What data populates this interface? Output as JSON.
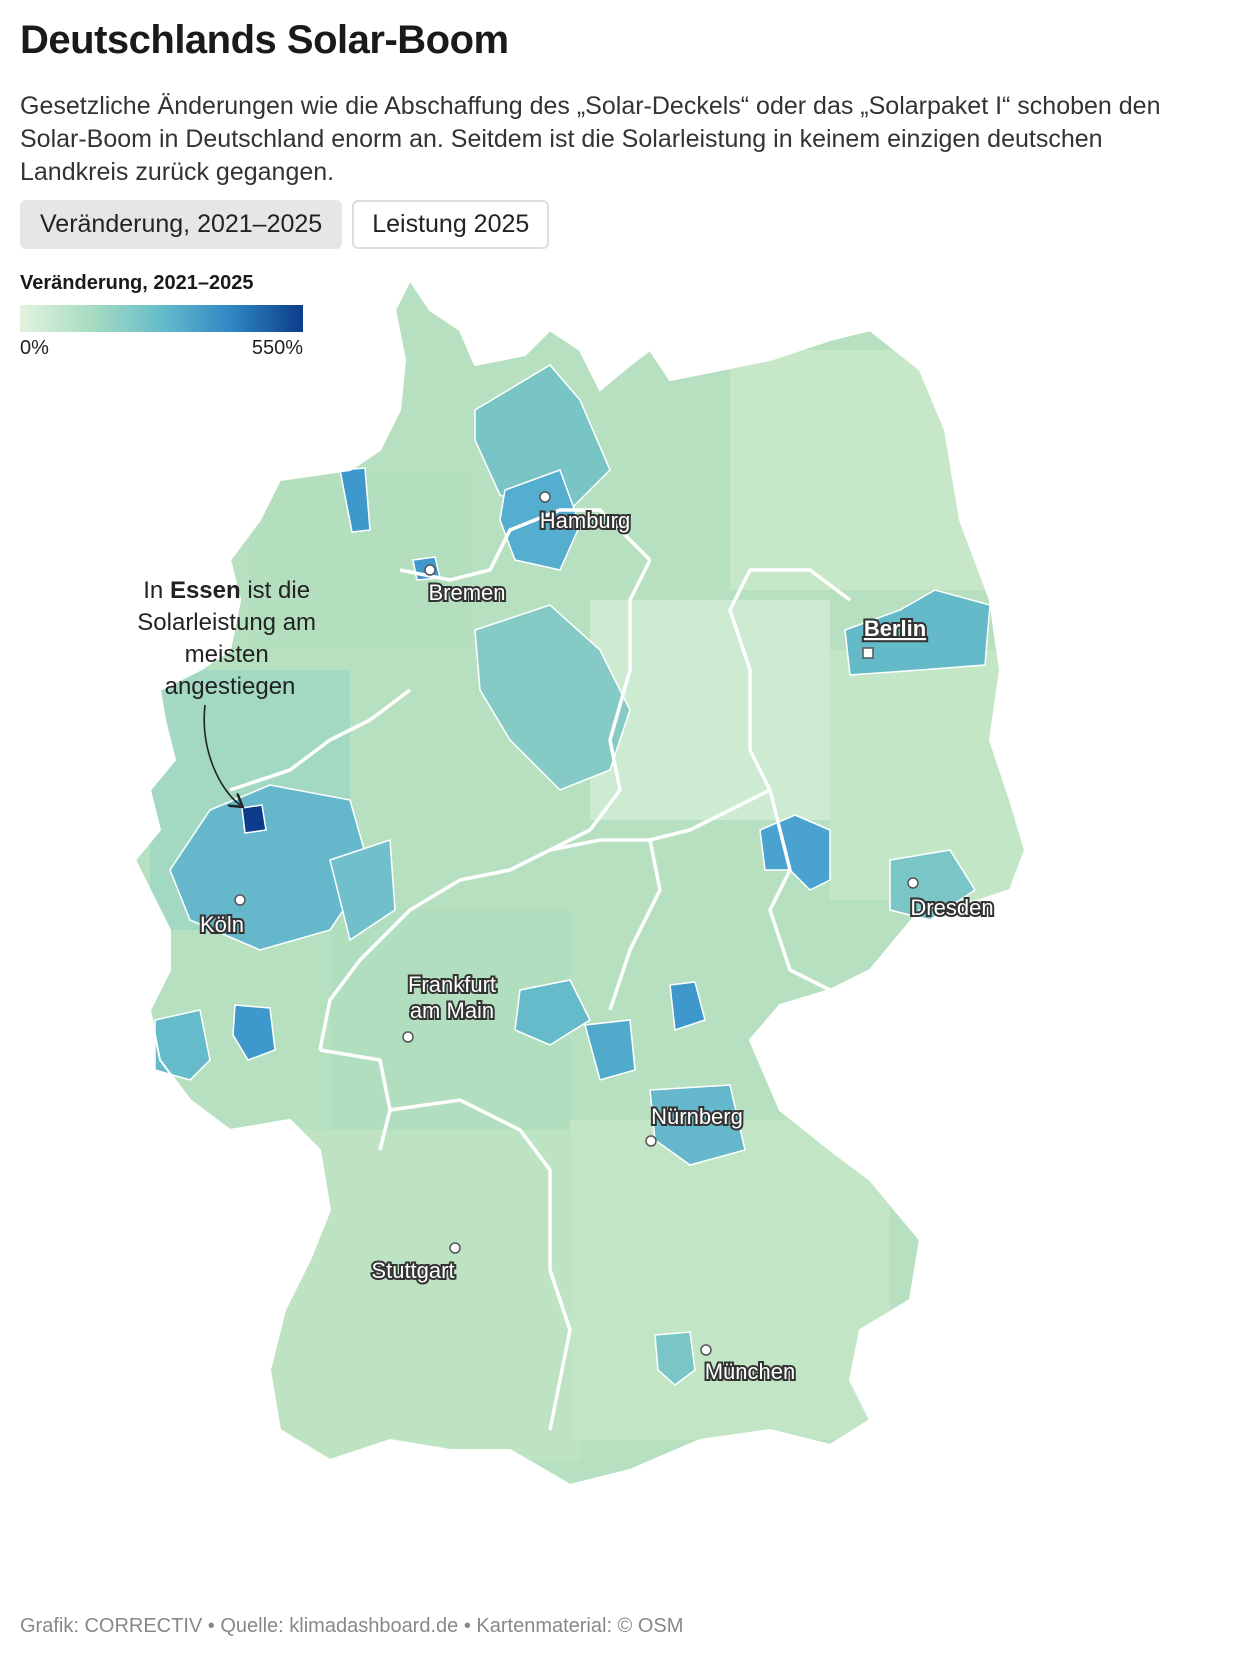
{
  "title": "Deutschlands Solar-Boom",
  "subtitle": "Gesetzliche Änderungen wie die Abschaffung des „Solar-Deckels“ oder das „Solarpaket I“ schoben den Solar-Boom in Deutschland enorm an. Seitdem ist die Solarleistung in keinem einzigen deutschen Landkreis zurück gegangen.",
  "tabs": [
    {
      "label": "Veränderung, 2021–2025",
      "active": true
    },
    {
      "label": "Leistung 2025",
      "active": false
    }
  ],
  "legend": {
    "title": "Veränderung, 2021–2025",
    "min_label": "0%",
    "max_label": "550%",
    "colors": [
      "#e3f3dd",
      "#a8dcc3",
      "#66bccb",
      "#2f86c2",
      "#0c3c8a"
    ]
  },
  "annotation": {
    "prefix": "In ",
    "bold": "Essen",
    "suffix": " ist die Solarleistung am meisten angestiegen"
  },
  "cities": [
    {
      "name": "Hamburg",
      "capital": false
    },
    {
      "name": "Bremen",
      "capital": false
    },
    {
      "name": "Berlin",
      "capital": true
    },
    {
      "name": "Dresden",
      "capital": false
    },
    {
      "name": "Köln",
      "capital": false
    },
    {
      "name": "Frankfurt am Main",
      "capital": false
    },
    {
      "name": "Nürnberg",
      "capital": false
    },
    {
      "name": "Stuttgart",
      "capital": false
    },
    {
      "name": "München",
      "capital": false
    }
  ],
  "footer": "Grafik: CORRECTIV • Quelle: klimadashboard.de • Kartenmaterial: © OSM"
}
